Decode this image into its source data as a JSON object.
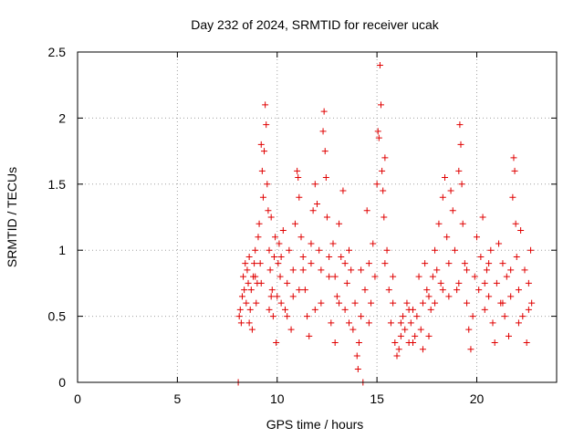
{
  "chart_data": {
    "type": "scatter",
    "title": "Day 232 of 2024, SRMTID for receiver ucak",
    "xlabel": "GPS time / hours",
    "ylabel": "SRMTID / TECUs",
    "xlim": [
      0,
      24
    ],
    "ylim": [
      0,
      2.5
    ],
    "x_ticks": [
      0,
      5,
      10,
      15,
      20
    ],
    "y_ticks": [
      0,
      0.5,
      1,
      1.5,
      2,
      2.5
    ],
    "x_tick_labels": [
      "0",
      "5",
      "10",
      "15",
      "20"
    ],
    "y_tick_labels": [
      "0",
      "0.5",
      "1",
      "1.5",
      "2",
      "2.5"
    ],
    "grid": true,
    "marker": "+",
    "series_color": "#e00000",
    "series": [
      {
        "name": "SRMTID",
        "points": [
          [
            8.05,
            0.0
          ],
          [
            8.1,
            0.5
          ],
          [
            8.15,
            0.55
          ],
          [
            8.2,
            0.45
          ],
          [
            8.25,
            0.65
          ],
          [
            8.3,
            0.8
          ],
          [
            8.35,
            0.7
          ],
          [
            8.4,
            0.9
          ],
          [
            8.45,
            0.6
          ],
          [
            8.5,
            0.85
          ],
          [
            8.55,
            0.75
          ],
          [
            8.6,
            0.95
          ],
          [
            8.65,
            0.55
          ],
          [
            8.7,
            0.7
          ],
          [
            8.75,
            0.4
          ],
          [
            8.8,
            0.8
          ],
          [
            8.85,
            0.9
          ],
          [
            8.9,
            1.0
          ],
          [
            8.95,
            0.6
          ],
          [
            9.0,
            0.75
          ],
          [
            9.05,
            1.1
          ],
          [
            9.1,
            1.2
          ],
          [
            9.15,
            0.9
          ],
          [
            9.2,
            1.8
          ],
          [
            9.25,
            1.6
          ],
          [
            9.3,
            1.4
          ],
          [
            9.35,
            1.75
          ],
          [
            9.4,
            2.1
          ],
          [
            9.45,
            1.95
          ],
          [
            9.5,
            1.5
          ],
          [
            9.55,
            1.3
          ],
          [
            9.6,
            1.0
          ],
          [
            9.65,
            0.85
          ],
          [
            9.7,
            1.25
          ],
          [
            9.75,
            0.7
          ],
          [
            9.8,
            0.5
          ],
          [
            9.85,
            0.95
          ],
          [
            9.9,
            1.1
          ],
          [
            9.95,
            0.3
          ],
          [
            10.0,
            0.65
          ],
          [
            10.05,
            0.9
          ],
          [
            10.1,
            1.05
          ],
          [
            10.15,
            0.8
          ],
          [
            10.2,
            0.6
          ],
          [
            10.3,
            1.15
          ],
          [
            10.4,
            0.55
          ],
          [
            10.5,
            0.75
          ],
          [
            10.6,
            1.0
          ],
          [
            10.7,
            0.4
          ],
          [
            10.8,
            0.85
          ],
          [
            10.9,
            1.2
          ],
          [
            11.0,
            1.6
          ],
          [
            11.05,
            1.55
          ],
          [
            11.1,
            1.4
          ],
          [
            11.2,
            1.1
          ],
          [
            11.3,
            0.95
          ],
          [
            11.4,
            0.7
          ],
          [
            11.5,
            0.5
          ],
          [
            11.6,
            0.35
          ],
          [
            11.7,
            0.9
          ],
          [
            11.8,
            1.3
          ],
          [
            11.9,
            1.5
          ],
          [
            12.0,
            1.35
          ],
          [
            12.1,
            1.0
          ],
          [
            12.2,
            0.6
          ],
          [
            12.3,
            1.9
          ],
          [
            12.35,
            2.05
          ],
          [
            12.4,
            1.75
          ],
          [
            12.45,
            1.55
          ],
          [
            12.5,
            1.25
          ],
          [
            12.6,
            0.8
          ],
          [
            12.7,
            0.45
          ],
          [
            12.8,
            1.05
          ],
          [
            12.9,
            0.3
          ],
          [
            13.0,
            0.65
          ],
          [
            13.1,
            1.2
          ],
          [
            13.2,
            0.95
          ],
          [
            13.3,
            1.45
          ],
          [
            13.4,
            0.55
          ],
          [
            13.5,
            0.75
          ],
          [
            13.6,
            1.0
          ],
          [
            13.7,
            0.85
          ],
          [
            13.8,
            0.4
          ],
          [
            13.9,
            0.6
          ],
          [
            14.0,
            0.2
          ],
          [
            14.05,
            0.1
          ],
          [
            14.1,
            0.3
          ],
          [
            14.2,
            0.5
          ],
          [
            14.3,
            0.0
          ],
          [
            14.4,
            0.7
          ],
          [
            14.5,
            1.3
          ],
          [
            14.6,
            0.9
          ],
          [
            14.7,
            0.6
          ],
          [
            14.8,
            1.05
          ],
          [
            14.9,
            0.8
          ],
          [
            15.0,
            1.5
          ],
          [
            15.05,
            1.9
          ],
          [
            15.1,
            1.85
          ],
          [
            15.15,
            2.4
          ],
          [
            15.2,
            2.1
          ],
          [
            15.25,
            1.6
          ],
          [
            15.3,
            1.45
          ],
          [
            15.35,
            1.25
          ],
          [
            15.4,
            1.7
          ],
          [
            15.5,
            1.0
          ],
          [
            15.6,
            0.7
          ],
          [
            15.7,
            0.45
          ],
          [
            15.8,
            0.6
          ],
          [
            15.9,
            0.3
          ],
          [
            16.0,
            0.2
          ],
          [
            16.1,
            0.25
          ],
          [
            16.2,
            0.35
          ],
          [
            16.3,
            0.5
          ],
          [
            16.4,
            0.4
          ],
          [
            16.5,
            0.6
          ],
          [
            16.6,
            0.3
          ],
          [
            16.7,
            0.45
          ],
          [
            16.8,
            0.55
          ],
          [
            16.9,
            0.35
          ],
          [
            17.0,
            0.5
          ],
          [
            17.1,
            0.8
          ],
          [
            17.2,
            0.4
          ],
          [
            17.3,
            0.6
          ],
          [
            17.4,
            0.9
          ],
          [
            17.5,
            0.7
          ],
          [
            17.6,
            0.35
          ],
          [
            17.7,
            0.55
          ],
          [
            17.8,
            0.8
          ],
          [
            17.9,
            1.0
          ],
          [
            18.0,
            0.85
          ],
          [
            18.1,
            1.2
          ],
          [
            18.2,
            0.75
          ],
          [
            18.3,
            1.4
          ],
          [
            18.4,
            1.55
          ],
          [
            18.5,
            1.1
          ],
          [
            18.6,
            0.9
          ],
          [
            18.7,
            1.45
          ],
          [
            18.8,
            1.3
          ],
          [
            18.9,
            1.0
          ],
          [
            19.0,
            0.7
          ],
          [
            19.1,
            1.6
          ],
          [
            19.15,
            1.95
          ],
          [
            19.2,
            1.8
          ],
          [
            19.25,
            1.5
          ],
          [
            19.3,
            1.2
          ],
          [
            19.4,
            0.9
          ],
          [
            19.5,
            0.6
          ],
          [
            19.6,
            0.4
          ],
          [
            19.7,
            0.25
          ],
          [
            19.8,
            0.5
          ],
          [
            19.9,
            0.8
          ],
          [
            20.0,
            1.1
          ],
          [
            20.1,
            0.7
          ],
          [
            20.2,
            0.95
          ],
          [
            20.3,
            1.25
          ],
          [
            20.4,
            0.55
          ],
          [
            20.5,
            0.85
          ],
          [
            20.6,
            0.65
          ],
          [
            20.7,
            1.0
          ],
          [
            20.8,
            0.45
          ],
          [
            20.9,
            0.3
          ],
          [
            21.0,
            0.75
          ],
          [
            21.1,
            1.05
          ],
          [
            21.2,
            0.6
          ],
          [
            21.3,
            0.9
          ],
          [
            21.4,
            0.5
          ],
          [
            21.5,
            0.8
          ],
          [
            21.6,
            0.35
          ],
          [
            21.7,
            0.65
          ],
          [
            21.8,
            1.4
          ],
          [
            21.85,
            1.7
          ],
          [
            21.9,
            1.6
          ],
          [
            21.95,
            1.2
          ],
          [
            22.0,
            0.95
          ],
          [
            22.1,
            0.7
          ],
          [
            22.2,
            1.15
          ],
          [
            22.3,
            0.5
          ],
          [
            22.4,
            0.85
          ],
          [
            22.5,
            0.3
          ],
          [
            22.6,
            0.75
          ],
          [
            22.7,
            1.0
          ],
          [
            22.75,
            0.6
          ],
          [
            9.2,
            0.75
          ],
          [
            9.6,
            0.55
          ],
          [
            10.2,
            0.95
          ],
          [
            10.8,
            0.65
          ],
          [
            11.3,
            0.85
          ],
          [
            11.9,
            0.55
          ],
          [
            12.6,
            0.95
          ],
          [
            13.1,
            0.6
          ],
          [
            13.6,
            0.45
          ],
          [
            14.2,
            0.85
          ],
          [
            15.4,
            0.9
          ],
          [
            16.2,
            0.45
          ],
          [
            16.8,
            0.3
          ],
          [
            17.3,
            0.25
          ],
          [
            17.9,
            0.6
          ],
          [
            18.6,
            0.65
          ],
          [
            19.5,
            0.85
          ],
          [
            20.4,
            0.75
          ],
          [
            21.3,
            0.6
          ],
          [
            22.1,
            0.45
          ],
          [
            22.6,
            0.55
          ],
          [
            8.6,
            0.45
          ],
          [
            8.9,
            0.8
          ],
          [
            9.7,
            0.65
          ],
          [
            10.5,
            0.5
          ],
          [
            11.1,
            0.7
          ],
          [
            11.7,
            1.05
          ],
          [
            12.2,
            0.85
          ],
          [
            12.9,
            0.8
          ],
          [
            13.4,
            0.9
          ],
          [
            14.6,
            0.45
          ],
          [
            15.8,
            0.8
          ],
          [
            16.6,
            0.55
          ],
          [
            17.6,
            0.65
          ],
          [
            18.3,
            0.7
          ],
          [
            19.1,
            0.75
          ],
          [
            20.6,
            0.9
          ],
          [
            21.7,
            0.85
          ]
        ]
      }
    ]
  }
}
